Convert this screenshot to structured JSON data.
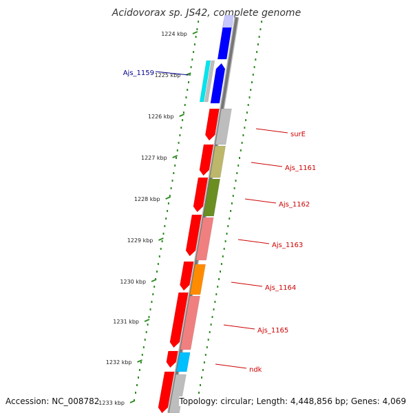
{
  "title": "Acidovorax sp. JS42, complete genome",
  "footer": {
    "accession": "Accession: NC_008782",
    "summary": "Topology: circular; Length: 4,448,856 bp; Genes: 4,069"
  },
  "colors": {
    "backbone": "#777777",
    "ruler": "#2e8b22",
    "forward_strand": "#ff0000",
    "reverse_strand": "#0000ff",
    "label_forward": "#cc0000",
    "label_reverse": "#00008b"
  },
  "ruler_ticks": [
    "1224 kbp",
    "1225 kbp",
    "1226 kbp",
    "1227 kbp",
    "1228 kbp",
    "1229 kbp",
    "1230 kbp",
    "1231 kbp",
    "1232 kbp",
    "1233 kbp"
  ],
  "gene_labels": [
    {
      "name": "Ajs_1159",
      "color": "#00008b"
    },
    {
      "name": "surE",
      "color": "#cc0000"
    },
    {
      "name": "Ajs_1161",
      "color": "#cc0000"
    },
    {
      "name": "Ajs_1162",
      "color": "#cc0000"
    },
    {
      "name": "Ajs_1163",
      "color": "#cc0000"
    },
    {
      "name": "Ajs_1164",
      "color": "#cc0000"
    },
    {
      "name": "Ajs_1165",
      "color": "#cc0000"
    },
    {
      "name": "ndk",
      "color": "#cc0000"
    }
  ],
  "feature_colors": [
    "#0000ff",
    "#00e5ee",
    "#bdbdbd",
    "#bdbdbd",
    "#bdb76b",
    "#6b8e23",
    "#f08080",
    "#ff8c00",
    "#f08080",
    "#00bfff",
    "#bdbdbd"
  ]
}
